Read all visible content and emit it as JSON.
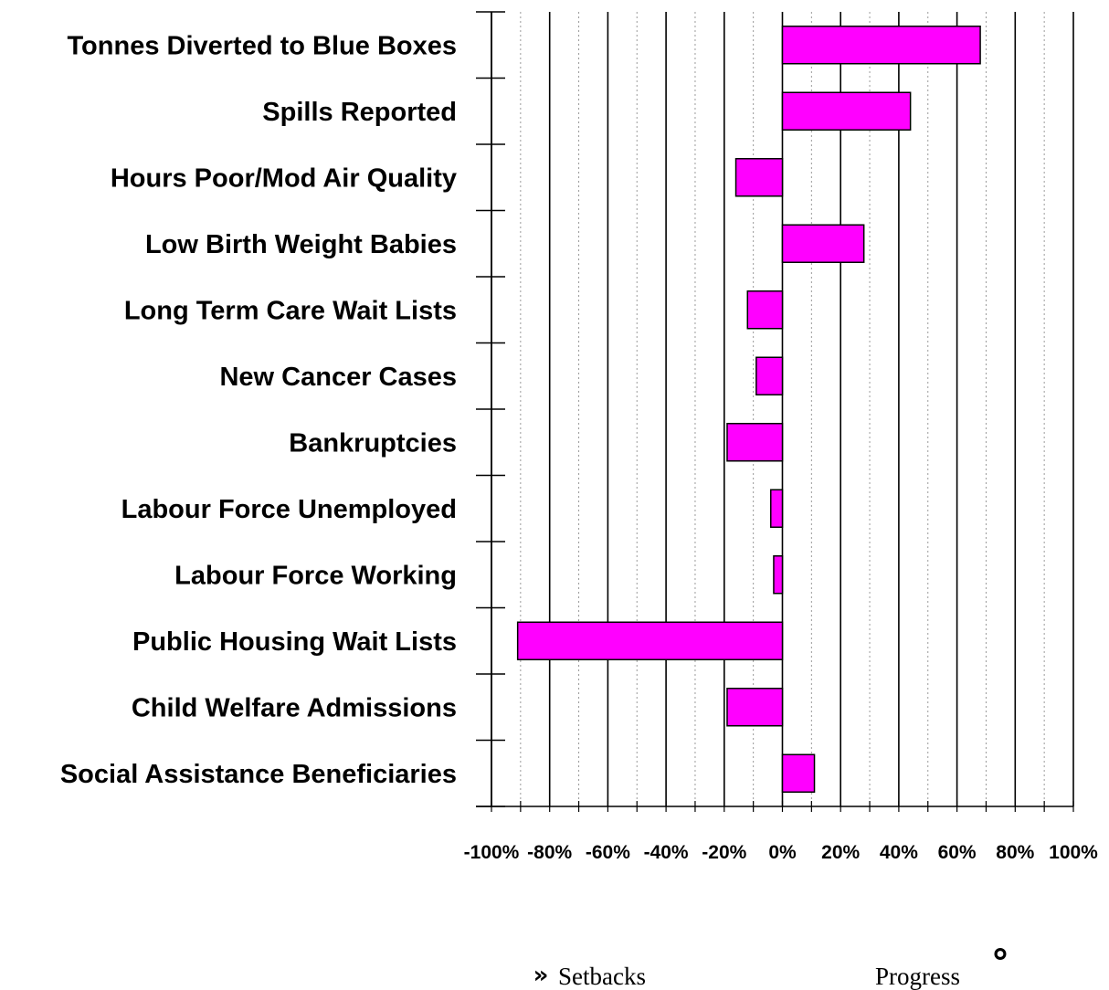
{
  "chart_data": {
    "type": "bar",
    "orientation": "horizontal",
    "categories": [
      "Tonnes Diverted to Blue Boxes",
      "Spills Reported",
      "Hours Poor/Mod Air Quality",
      "Low Birth Weight Babies",
      "Long Term Care Wait Lists",
      "New Cancer Cases",
      "Bankruptcies",
      "Labour Force Unemployed",
      "Labour Force Working",
      "Public Housing Wait Lists",
      "Child Welfare Admissions",
      "Social Assistance Beneficiaries"
    ],
    "values": [
      68,
      44,
      -16,
      28,
      -12,
      -9,
      -19,
      -4,
      -3,
      -91,
      -19,
      11
    ],
    "xlim": [
      -100,
      100
    ],
    "x_ticks": [
      "-100%",
      "-80%",
      "-60%",
      "-40%",
      "-20%",
      "0%",
      "20%",
      "40%",
      "60%",
      "80%",
      "100%"
    ],
    "bar_color": "#FF00FF",
    "grid": true,
    "legend": {
      "left_symbol": "»",
      "left_label": "Setbacks",
      "right_label": "Progress",
      "right_symbol": "°"
    }
  }
}
